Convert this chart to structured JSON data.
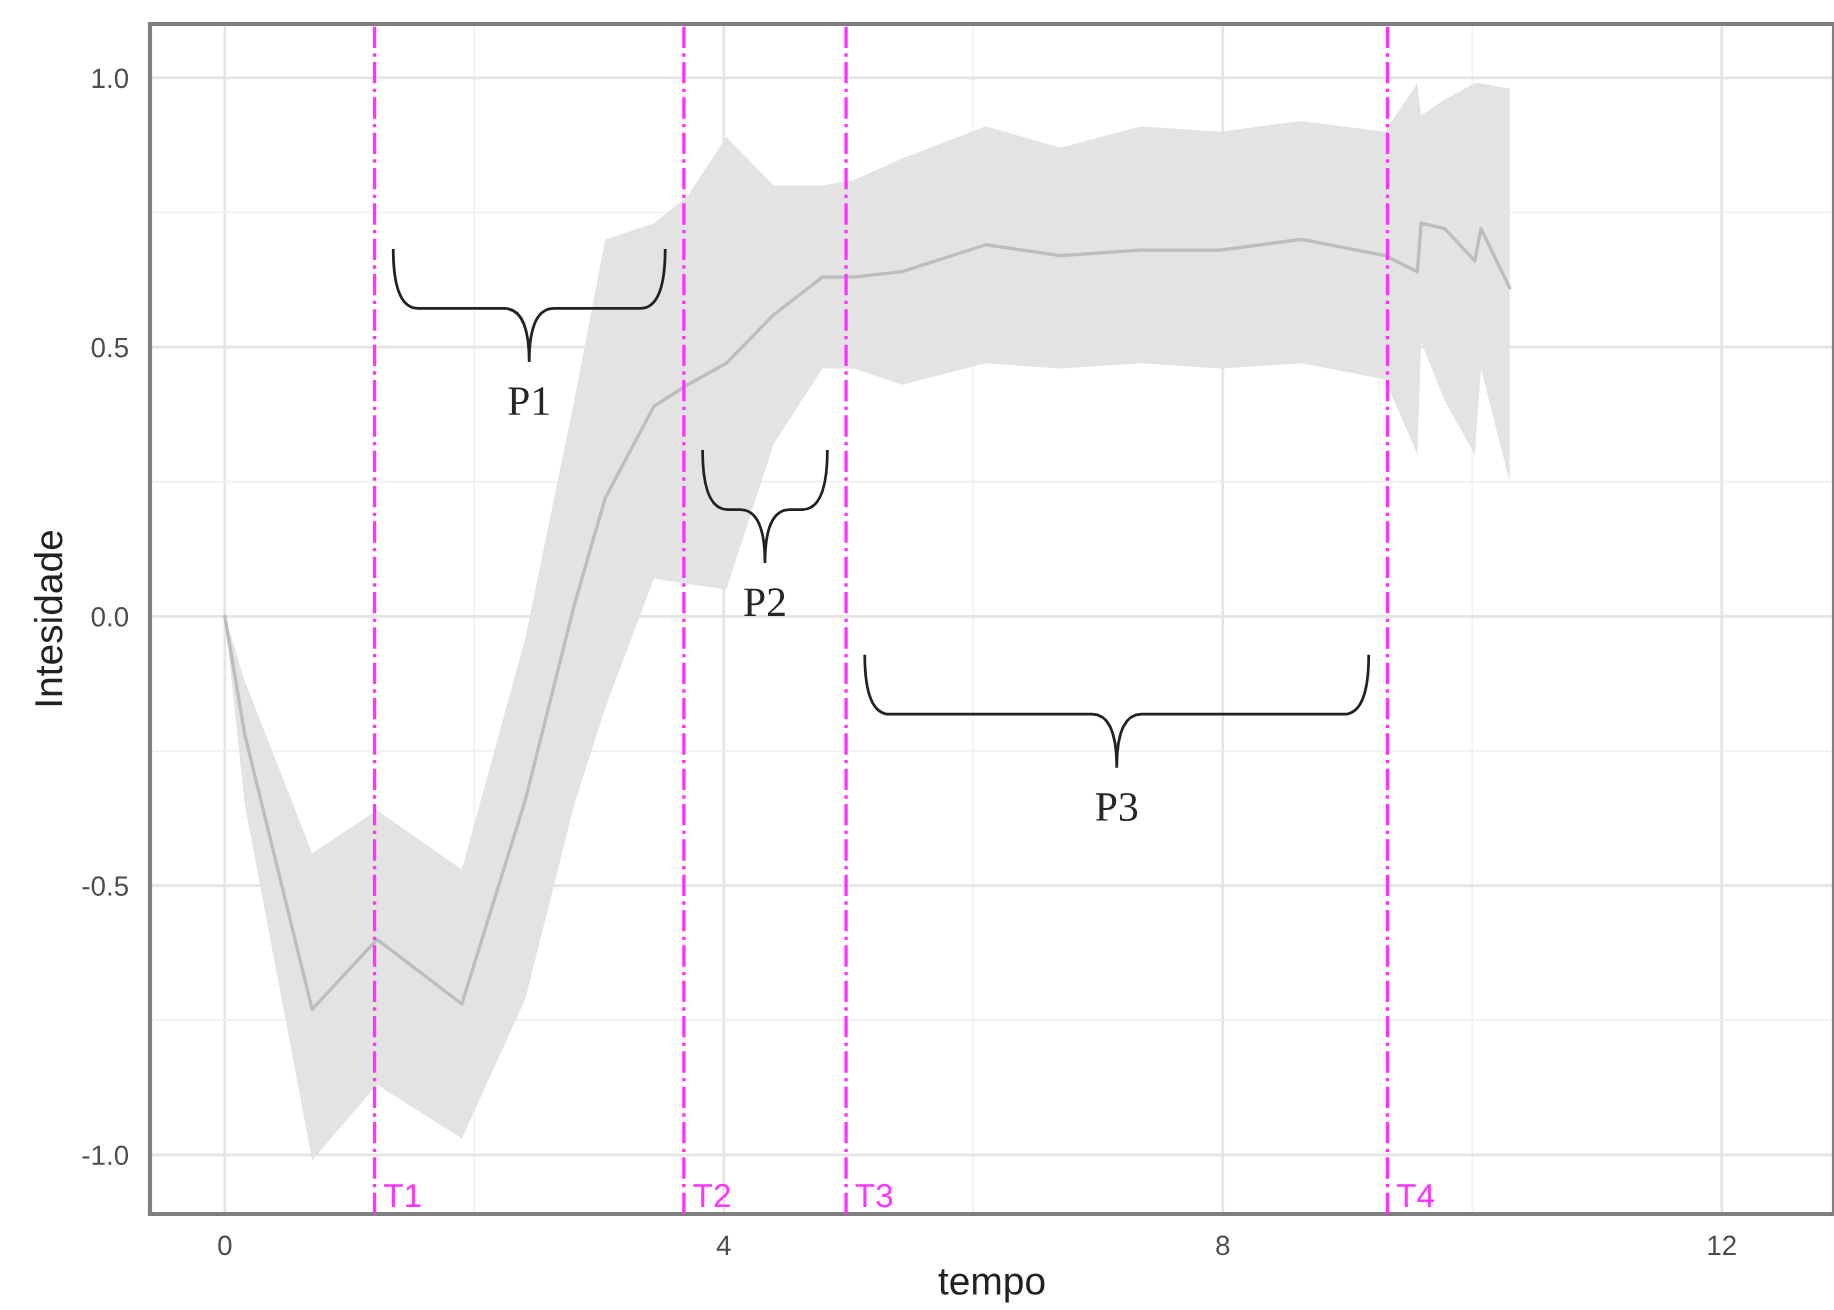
{
  "chart_data": {
    "type": "line",
    "xlabel": "tempo",
    "ylabel": "Intesidade",
    "xlim": [
      -0.6,
      12.9
    ],
    "ylim": [
      -1.11,
      1.1
    ],
    "xticks": [
      0,
      4,
      8,
      12
    ],
    "yticks": [
      {
        "value": -1.0,
        "label": "-1.0"
      },
      {
        "value": -0.5,
        "label": "-0.5"
      },
      {
        "value": 0.0,
        "label": "0.0"
      },
      {
        "value": 0.5,
        "label": "0.5"
      },
      {
        "value": 1.0,
        "label": "1.0"
      }
    ],
    "grid": true,
    "series": [
      {
        "color": "#bdbdbd",
        "x": [
          0,
          0.16,
          0.7,
          1.22,
          1.9,
          2.41,
          2.8,
          3.05,
          3.44,
          3.71,
          4.02,
          4.4,
          4.79,
          5.04,
          5.43,
          6.1,
          6.7,
          7.34,
          7.98,
          8.63,
          9.3,
          9.56,
          9.59,
          9.78,
          10.02,
          10.07,
          10.3
        ],
        "values": [
          0,
          -0.22,
          -0.73,
          -0.6,
          -0.72,
          -0.34,
          0.02,
          0.22,
          0.39,
          0.43,
          0.47,
          0.56,
          0.63,
          0.63,
          0.64,
          0.69,
          0.67,
          0.68,
          0.68,
          0.7,
          0.67,
          0.64,
          0.73,
          0.72,
          0.66,
          0.72,
          0.61
        ],
        "upper": [
          0,
          -0.12,
          -0.44,
          -0.36,
          -0.47,
          -0.04,
          0.4,
          0.7,
          0.73,
          0.78,
          0.89,
          0.8,
          0.8,
          0.81,
          0.85,
          0.91,
          0.87,
          0.91,
          0.9,
          0.92,
          0.9,
          0.99,
          0.93,
          0.96,
          0.99,
          0.99,
          0.98
        ],
        "lower": [
          0,
          -0.35,
          -1.01,
          -0.87,
          -0.97,
          -0.71,
          -0.35,
          -0.17,
          0.07,
          0.06,
          0.05,
          0.32,
          0.46,
          0.46,
          0.43,
          0.47,
          0.46,
          0.47,
          0.46,
          0.47,
          0.44,
          0.3,
          0.51,
          0.4,
          0.3,
          0.46,
          0.25
        ]
      }
    ],
    "ref_lines": [
      {
        "axis": "x",
        "value": 1.2,
        "label": "T1",
        "color": "#ff33ff",
        "line_style": "dashed"
      },
      {
        "axis": "x",
        "value": 3.68,
        "label": "T2",
        "color": "#ff33ff",
        "line_style": "dashed"
      },
      {
        "axis": "x",
        "value": 4.98,
        "label": "T3",
        "color": "#ff33ff",
        "line_style": "dashed"
      },
      {
        "axis": "x",
        "value": 9.32,
        "label": "T4",
        "color": "#ff33ff",
        "line_style": "dashed"
      }
    ],
    "annotations": [
      "P1",
      "P2",
      "P3"
    ]
  }
}
